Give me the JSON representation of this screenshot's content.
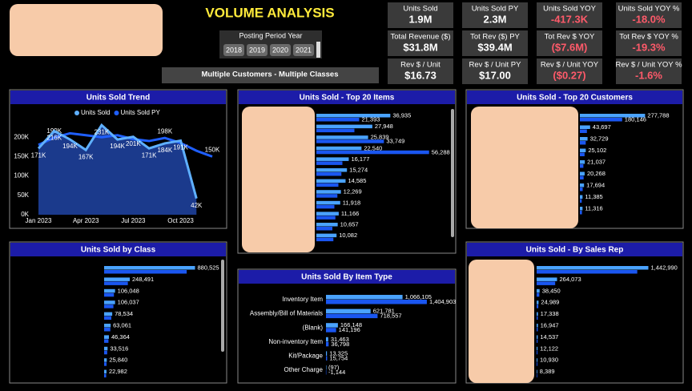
{
  "header": {
    "title": "VOLUME ANALYSIS"
  },
  "slicer": {
    "title": "Posting Period Year",
    "options": [
      "2018",
      "2019",
      "2020",
      "2021"
    ]
  },
  "filter": "Multiple Customers - Multiple Classes",
  "cards": [
    {
      "label": "Units Sold",
      "value": "1.9M"
    },
    {
      "label": "Units Sold PY",
      "value": "2.3M"
    },
    {
      "label": "Units Sold YOY",
      "value": "-417.3K"
    },
    {
      "label": "Units Sold YOY %",
      "value": "-18.0%"
    },
    {
      "label": "Total Revenue ($)",
      "value": "$31.8M"
    },
    {
      "label": "Tot Rev ($) PY",
      "value": "$39.4M"
    },
    {
      "label": "Tot Rev $ YOY",
      "value": "($7.6M)"
    },
    {
      "label": "Tot Rev $ YOY %",
      "value": "-19.3%"
    },
    {
      "label": "Rev $ / Unit",
      "value": "$16.73"
    },
    {
      "label": "Rev $ / Unit PY",
      "value": "$17.00"
    },
    {
      "label": "Rev $ / Unit YOY",
      "value": "($0.27)"
    },
    {
      "label": "Rev $ / Unit YOY %",
      "value": "-1.6%"
    }
  ],
  "chart_data": [
    {
      "type": "line",
      "title": "Units Sold Trend",
      "categories": [
        "Jan 2023",
        null,
        null,
        "Apr 2023",
        null,
        null,
        "Jul 2023",
        null,
        null,
        "Oct 2023",
        null,
        null
      ],
      "series": [
        {
          "name": "Units Sold",
          "color": "#5fb0ff",
          "values": [
            171000,
            216000,
            194000,
            167000,
            231000,
            194000,
            201000,
            171000,
            184000,
            191000,
            42000,
            null
          ],
          "value_labels": [
            "171K",
            "216K",
            "194K",
            "167K",
            "231K",
            "194K",
            "201K",
            "171K",
            "184K",
            "191K",
            "42K",
            null
          ]
        },
        {
          "name": "Units Sold PY",
          "color": "#1f5fff",
          "values": [
            180000,
            199000,
            210000,
            205000,
            200000,
            205000,
            195000,
            190000,
            198000,
            185000,
            165000,
            150000
          ],
          "value_labels": [
            null,
            "199K",
            null,
            null,
            null,
            null,
            null,
            null,
            "198K",
            null,
            null,
            "150K"
          ]
        }
      ],
      "ylim": [
        0,
        250000
      ],
      "yticks": [
        {
          "value": 0,
          "label": "0K"
        },
        {
          "value": 50000,
          "label": "50K"
        },
        {
          "value": 100000,
          "label": "100K"
        },
        {
          "value": 150000,
          "label": "150K"
        },
        {
          "value": 200000,
          "label": "200K"
        }
      ]
    },
    {
      "type": "hbar",
      "title": "Units Sold - Top 20 Items",
      "xlim": [
        0,
        60000
      ],
      "series": [
        {
          "color": "#4aa3ff",
          "values": [
            36935,
            27948,
            25839,
            22540,
            16177,
            15274,
            14585,
            12269,
            11918,
            11166,
            10657,
            10082
          ],
          "value_labels": [
            "36,935",
            "27,948",
            "25,839",
            "22,540",
            "16,177",
            "15,274",
            "14,585",
            "12,269",
            "11,918",
            "11,166",
            "10,657",
            "10,082"
          ]
        },
        {
          "color": "#1a56f0",
          "values": [
            21393,
            19000,
            33749,
            56288,
            13000,
            12500,
            11000,
            10500,
            9000,
            9500,
            8000,
            8500
          ],
          "value_labels": [
            "21,393",
            null,
            "33,749",
            "56,288",
            null,
            null,
            null,
            null,
            null,
            null,
            null,
            null
          ]
        }
      ]
    },
    {
      "type": "hbar",
      "title": "Units Sold - Top 20 Customers",
      "xlim": [
        0,
        290000
      ],
      "series": [
        {
          "color": "#4aa3ff",
          "values": [
            277788,
            43697,
            32729,
            25102,
            21037,
            20268,
            17694,
            11385,
            11316
          ],
          "value_labels": [
            "277,788",
            "43,697",
            "32,729",
            "25,102",
            "21,037",
            "20,268",
            "17,694",
            "11,385",
            "11,316"
          ]
        },
        {
          "color": "#1a56f0",
          "values": [
            180146,
            30000,
            25000,
            20000,
            15000,
            16000,
            12000,
            8000,
            9000
          ],
          "value_labels": [
            "180,146",
            null,
            null,
            null,
            null,
            null,
            null,
            null,
            null
          ]
        }
      ]
    },
    {
      "type": "hbar",
      "title": "Units Sold by Class",
      "xlim": [
        0,
        900000
      ],
      "series": [
        {
          "color": "#4aa3ff",
          "values": [
            880525,
            248491,
            106048,
            106037,
            78534,
            63061,
            46364,
            33516,
            25840,
            22982
          ],
          "value_labels": [
            "880,525",
            "248,491",
            "106,048",
            "106,037",
            "78,534",
            "63,061",
            "46,364",
            "33,516",
            "25,840",
            "22,982"
          ]
        },
        {
          "color": "#1a56f0",
          "values": [
            800000,
            230000,
            95000,
            90000,
            70000,
            60000,
            42000,
            30000,
            24000,
            20000
          ],
          "value_labels": [
            null,
            null,
            null,
            null,
            null,
            null,
            null,
            null,
            null,
            null
          ]
        }
      ]
    },
    {
      "type": "hbar",
      "title": "Units Sold By Item Type",
      "xlim": [
        0,
        1450000
      ],
      "categories": [
        "Inventory Item",
        "Assembly/Bill of Materials",
        "(Blank)",
        "Non-inventory Item",
        "Kit/Package",
        "Other Charge"
      ],
      "series": [
        {
          "color": "#4aa3ff",
          "values": [
            1066105,
            621781,
            166148,
            31463,
            13325,
            -97
          ],
          "value_labels": [
            "1,066,105",
            "621,781",
            "166,148",
            "31,463",
            "13,325",
            "(97)"
          ]
        },
        {
          "color": "#1a56f0",
          "values": [
            1404903,
            718557,
            141196,
            36798,
            15754,
            -1144
          ],
          "value_labels": [
            "1,404,903",
            "718,557",
            "141,196",
            "36,798",
            "15,754",
            "-1,144"
          ]
        }
      ]
    },
    {
      "type": "hbar",
      "title": "Units Sold - By Sales Rep",
      "xlim": [
        0,
        1500000
      ],
      "series": [
        {
          "color": "#4aa3ff",
          "values": [
            1442990,
            264073,
            38450,
            24989,
            17338,
            16947,
            14537,
            12122,
            10930,
            8389
          ],
          "value_labels": [
            "1,442,990",
            "264,073",
            "38,450",
            "24,989",
            "17,338",
            "16,947",
            "14,537",
            "12,122",
            "10,930",
            "8,389"
          ]
        },
        {
          "color": "#1a56f0",
          "values": [
            1300000,
            240000,
            35000,
            22000,
            15000,
            15000,
            13000,
            11000,
            9500,
            7500
          ],
          "value_labels": [
            null,
            null,
            null,
            null,
            null,
            null,
            null,
            null,
            null,
            null
          ]
        }
      ]
    }
  ]
}
